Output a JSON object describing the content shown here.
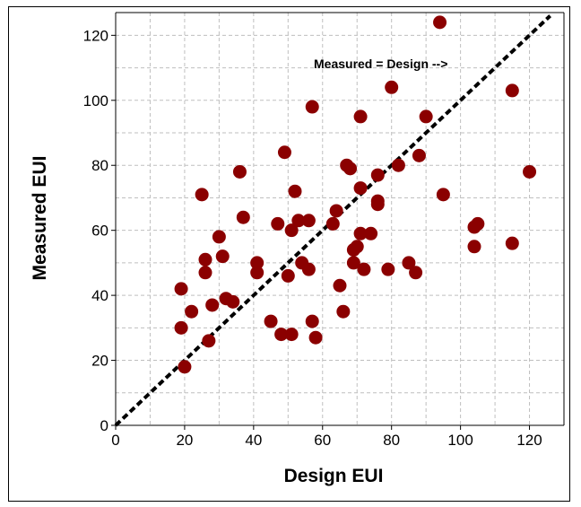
{
  "chart_data": {
    "type": "scatter",
    "xlabel": "Design EUI",
    "ylabel": "Measured EUI",
    "xlim": [
      0,
      130
    ],
    "ylim": [
      0,
      127
    ],
    "xticks": [
      0,
      20,
      40,
      60,
      80,
      100,
      120
    ],
    "yticks": [
      0,
      20,
      40,
      60,
      80,
      100,
      120
    ],
    "grid": true,
    "annotation": "Measured = Design -->",
    "reference_line": {
      "x": [
        0,
        126
      ],
      "y": [
        0,
        126
      ],
      "style": "dashed"
    },
    "colors": {
      "points": "#8b0000",
      "reference_line": "#000000",
      "grid": "#bfbfbf"
    },
    "points": [
      [
        19,
        42
      ],
      [
        19,
        30
      ],
      [
        20,
        18
      ],
      [
        22,
        35
      ],
      [
        25,
        71
      ],
      [
        26,
        47
      ],
      [
        26,
        51
      ],
      [
        27,
        26
      ],
      [
        28,
        37
      ],
      [
        30,
        58
      ],
      [
        31,
        52
      ],
      [
        32,
        39
      ],
      [
        34,
        38
      ],
      [
        36,
        78
      ],
      [
        37,
        64
      ],
      [
        41,
        47
      ],
      [
        41,
        50
      ],
      [
        45,
        32
      ],
      [
        47,
        62
      ],
      [
        48,
        28
      ],
      [
        49,
        84
      ],
      [
        50,
        46
      ],
      [
        51,
        28
      ],
      [
        51,
        60
      ],
      [
        52,
        72
      ],
      [
        53,
        63
      ],
      [
        54,
        50
      ],
      [
        56,
        48
      ],
      [
        56,
        63
      ],
      [
        57,
        98
      ],
      [
        57,
        32
      ],
      [
        58,
        27
      ],
      [
        63,
        62
      ],
      [
        64,
        66
      ],
      [
        65,
        43
      ],
      [
        66,
        35
      ],
      [
        67,
        80
      ],
      [
        68,
        79
      ],
      [
        69,
        54
      ],
      [
        69,
        50
      ],
      [
        70,
        55
      ],
      [
        71,
        95
      ],
      [
        71,
        59
      ],
      [
        71,
        73
      ],
      [
        72,
        48
      ],
      [
        74,
        59
      ],
      [
        76,
        77
      ],
      [
        76,
        69
      ],
      [
        76,
        68
      ],
      [
        79,
        48
      ],
      [
        80,
        104
      ],
      [
        82,
        80
      ],
      [
        85,
        50
      ],
      [
        87,
        47
      ],
      [
        88,
        83
      ],
      [
        90,
        95
      ],
      [
        94,
        124
      ],
      [
        95,
        71
      ],
      [
        104,
        61
      ],
      [
        104,
        55
      ],
      [
        105,
        62
      ],
      [
        115,
        56
      ],
      [
        115,
        103
      ],
      [
        120,
        78
      ]
    ]
  }
}
